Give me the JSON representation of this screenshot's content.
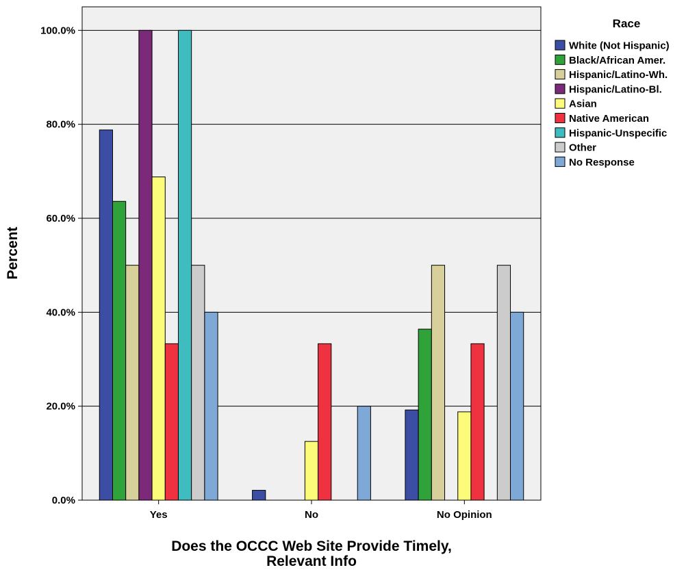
{
  "chart_data": {
    "type": "bar",
    "title": "",
    "xlabel_lines": [
      "Does the OCCC Web Site Provide Timely,",
      "Relevant Info"
    ],
    "ylabel": "Percent",
    "ylim": [
      0,
      105
    ],
    "yticks": [
      0,
      20,
      40,
      60,
      80,
      100
    ],
    "ytick_labels": [
      "0.0%",
      "20.0%",
      "40.0%",
      "60.0%",
      "80.0%",
      "100.0%"
    ],
    "grid": true,
    "legend_title": "Race",
    "legend_position": "right",
    "categories": [
      "Yes",
      "No",
      "No Opinion"
    ],
    "series": [
      {
        "name": "White (Not Hispanic)",
        "color": "#3b4ea3",
        "values": [
          78.8,
          2.1,
          19.2
        ]
      },
      {
        "name": "Black/African Amer.",
        "color": "#2fa33a",
        "values": [
          63.6,
          0,
          36.4
        ]
      },
      {
        "name": "Hispanic/Latino-Wh.",
        "color": "#d8d09a",
        "values": [
          50.0,
          0,
          50.0
        ]
      },
      {
        "name": "Hispanic/Latino-Bl.",
        "color": "#7a2a78",
        "values": [
          100.0,
          0,
          0
        ]
      },
      {
        "name": "Asian",
        "color": "#fdfb7a",
        "values": [
          68.8,
          12.5,
          18.8
        ]
      },
      {
        "name": "Native American",
        "color": "#ee3240",
        "values": [
          33.3,
          33.3,
          33.3
        ]
      },
      {
        "name": "Hispanic-Unspecific",
        "color": "#3fbcc0",
        "values": [
          100.0,
          0,
          0
        ]
      },
      {
        "name": "Other",
        "color": "#cccccc",
        "values": [
          50.0,
          0,
          50.0
        ]
      },
      {
        "name": "No Response",
        "color": "#7ea8d6",
        "values": [
          40.0,
          20.0,
          40.0
        ]
      }
    ]
  }
}
